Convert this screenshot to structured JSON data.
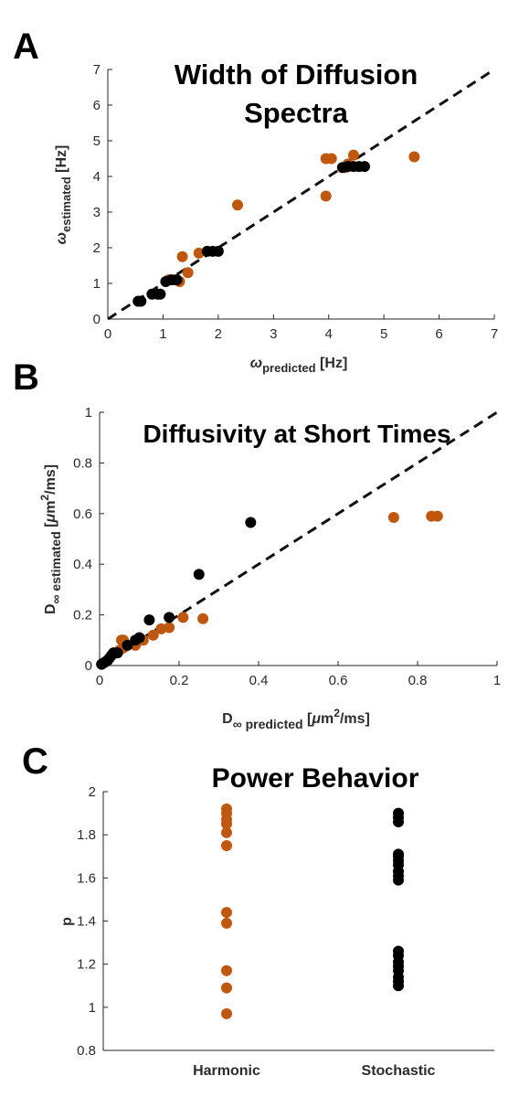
{
  "colors": {
    "harmonic": "#c0570f",
    "stochastic": "#000000",
    "axis": "#262626"
  },
  "chart_data": [
    {
      "type": "scatter",
      "panel_label": "A",
      "title_line1": "Width of Diffusion",
      "title_line2": "Spectra",
      "xlabel_symbol": "ω",
      "xlabel_sub": "predicted",
      "xlabel_unit": " [Hz]",
      "ylabel_symbol": "ω",
      "ylabel_sub": "estimated",
      "ylabel_unit": " [Hz]",
      "xlim": [
        0,
        7
      ],
      "ylim": [
        0,
        7
      ],
      "xticks": [
        "0",
        "1",
        "2",
        "3",
        "4",
        "5",
        "6",
        "7"
      ],
      "yticks": [
        "0",
        "1",
        "2",
        "3",
        "4",
        "5",
        "6",
        "7"
      ],
      "identity_line": true,
      "series": [
        {
          "color_key": "harmonic",
          "points": [
            [
              1.1,
              1.1
            ],
            [
              1.2,
              1.1
            ],
            [
              1.3,
              1.05
            ],
            [
              1.35,
              1.75
            ],
            [
              1.45,
              1.3
            ],
            [
              1.65,
              1.85
            ],
            [
              2.35,
              3.2
            ],
            [
              3.95,
              3.45
            ],
            [
              3.95,
              4.5
            ],
            [
              4.05,
              4.5
            ],
            [
              4.3,
              4.25
            ],
            [
              4.35,
              4.35
            ],
            [
              4.45,
              4.6
            ],
            [
              5.55,
              4.55
            ]
          ]
        },
        {
          "color_key": "stochastic",
          "points": [
            [
              0.55,
              0.5
            ],
            [
              0.6,
              0.5
            ],
            [
              0.8,
              0.7
            ],
            [
              0.9,
              0.7
            ],
            [
              0.95,
              0.7
            ],
            [
              1.05,
              1.05
            ],
            [
              1.15,
              1.1
            ],
            [
              1.25,
              1.1
            ],
            [
              1.8,
              1.9
            ],
            [
              1.9,
              1.9
            ],
            [
              2.0,
              1.9
            ],
            [
              4.25,
              4.25
            ],
            [
              4.35,
              4.28
            ],
            [
              4.45,
              4.28
            ],
            [
              4.55,
              4.28
            ],
            [
              4.65,
              4.28
            ]
          ]
        }
      ]
    },
    {
      "type": "scatter",
      "panel_label": "B",
      "title": "Diffusivity at Short Times",
      "xlabel_prefix": "D",
      "xlabel_sub": "∞ predicted",
      "xlabel_unit_pre": " [",
      "xlabel_mu": "μ",
      "xlabel_unit_mid": "m",
      "xlabel_sup": "2",
      "xlabel_unit_post": "/ms]",
      "ylabel_prefix": "D",
      "ylabel_sub": "∞ estimated",
      "ylabel_unit_pre": " [",
      "ylabel_mu": "μ",
      "ylabel_unit_mid": "m",
      "ylabel_sup": "2",
      "ylabel_unit_post": "/ms]",
      "xlim": [
        0,
        1
      ],
      "ylim": [
        0,
        1
      ],
      "xticks": [
        "0",
        "0.2",
        "0.4",
        "0.6",
        "0.8",
        "1"
      ],
      "yticks": [
        "0",
        "0.2",
        "0.4",
        "0.6",
        "0.8",
        "1"
      ],
      "identity_line": true,
      "series": [
        {
          "color_key": "harmonic",
          "points": [
            [
              0.055,
              0.1
            ],
            [
              0.06,
              0.1
            ],
            [
              0.05,
              0.06
            ],
            [
              0.06,
              0.07
            ],
            [
              0.09,
              0.08
            ],
            [
              0.11,
              0.1
            ],
            [
              0.135,
              0.12
            ],
            [
              0.155,
              0.145
            ],
            [
              0.175,
              0.15
            ],
            [
              0.21,
              0.19
            ],
            [
              0.26,
              0.185
            ],
            [
              0.74,
              0.585
            ],
            [
              0.835,
              0.59
            ],
            [
              0.85,
              0.59
            ]
          ]
        },
        {
          "color_key": "stochastic",
          "points": [
            [
              0.005,
              0.005
            ],
            [
              0.01,
              0.01
            ],
            [
              0.015,
              0.015
            ],
            [
              0.02,
              0.02
            ],
            [
              0.025,
              0.03
            ],
            [
              0.03,
              0.04
            ],
            [
              0.035,
              0.05
            ],
            [
              0.045,
              0.05
            ],
            [
              0.07,
              0.08
            ],
            [
              0.09,
              0.1
            ],
            [
              0.1,
              0.11
            ],
            [
              0.125,
              0.18
            ],
            [
              0.175,
              0.19
            ],
            [
              0.25,
              0.36
            ],
            [
              0.38,
              0.565
            ]
          ]
        }
      ]
    },
    {
      "type": "scatter",
      "panel_label": "C",
      "title": "Power Behavior",
      "ylabel": "p",
      "categories": [
        "Harmonic",
        "Stochastic"
      ],
      "ylim": [
        0.8,
        2
      ],
      "yticks": [
        "0.8",
        "1",
        "1.2",
        "1.4",
        "1.6",
        "1.8",
        "2"
      ],
      "series": [
        {
          "name": "Harmonic",
          "color_key": "harmonic",
          "category_index": 0,
          "values": [
            0.97,
            1.09,
            1.17,
            1.39,
            1.44,
            1.75,
            1.81,
            1.85,
            1.87,
            1.9,
            1.92
          ]
        },
        {
          "name": "Stochastic",
          "color_key": "stochastic",
          "category_index": 1,
          "values": [
            1.1,
            1.12,
            1.14,
            1.17,
            1.19,
            1.21,
            1.24,
            1.26,
            1.59,
            1.61,
            1.63,
            1.66,
            1.68,
            1.7,
            1.71,
            1.86,
            1.88,
            1.9
          ]
        }
      ]
    }
  ]
}
